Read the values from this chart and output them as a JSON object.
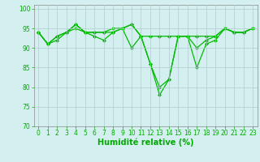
{
  "title": "",
  "xlabel": "Humidité relative (%)",
  "ylabel": "",
  "xlim": [
    -0.5,
    23.5
  ],
  "ylim": [
    70,
    101
  ],
  "yticks": [
    70,
    75,
    80,
    85,
    90,
    95,
    100
  ],
  "xticks": [
    0,
    1,
    2,
    3,
    4,
    5,
    6,
    7,
    8,
    9,
    10,
    11,
    12,
    13,
    14,
    15,
    16,
    17,
    18,
    19,
    20,
    21,
    22,
    23
  ],
  "background_color": "#d4efef",
  "grid_color": "#b0cccc",
  "line_color": "#00bb00",
  "series": [
    [
      94,
      91,
      92,
      94,
      96,
      94,
      94,
      94,
      94,
      95,
      96,
      93,
      86,
      80,
      82,
      93,
      93,
      85,
      91,
      92,
      95,
      94,
      94,
      95
    ],
    [
      94,
      91,
      93,
      94,
      96,
      94,
      93,
      92,
      94,
      95,
      90,
      93,
      86,
      78,
      82,
      93,
      93,
      90,
      92,
      93,
      95,
      94,
      94,
      95
    ],
    [
      94,
      91,
      93,
      94,
      95,
      94,
      94,
      94,
      95,
      95,
      96,
      93,
      93,
      93,
      93,
      93,
      93,
      93,
      93,
      93,
      95,
      94,
      94,
      95
    ]
  ],
  "marker": "D",
  "markersize": 2.0,
  "linewidth": 0.9,
  "xlabel_fontsize": 7,
  "tick_fontsize": 5.5,
  "xlabel_color": "#00aa00",
  "tick_color": "#00aa00"
}
